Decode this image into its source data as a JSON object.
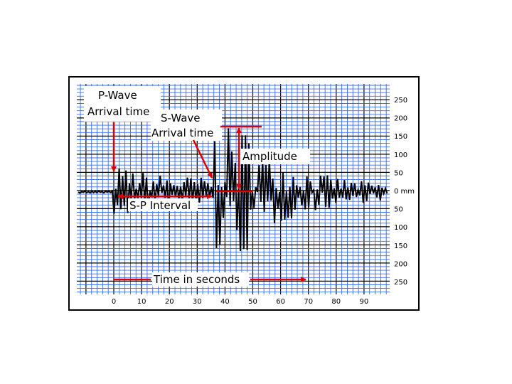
{
  "labels": {
    "p_wave": [
      "P-Wave",
      "Arrival time"
    ],
    "s_wave": [
      "S-Wave",
      "Arrival time"
    ],
    "amplitude": "Amplitude",
    "sp_interval": "S-P Interval",
    "time_axis": "Time in seconds"
  },
  "x_axis": {
    "ticks": [
      "0",
      "10",
      "20",
      "30",
      "40",
      "50",
      "60",
      "70",
      "80",
      "90"
    ]
  },
  "y_axis": {
    "ticks": [
      "250",
      "200",
      "150",
      "100",
      "50",
      "0 mm",
      "50",
      "100",
      "150",
      "200",
      "250"
    ]
  }
}
